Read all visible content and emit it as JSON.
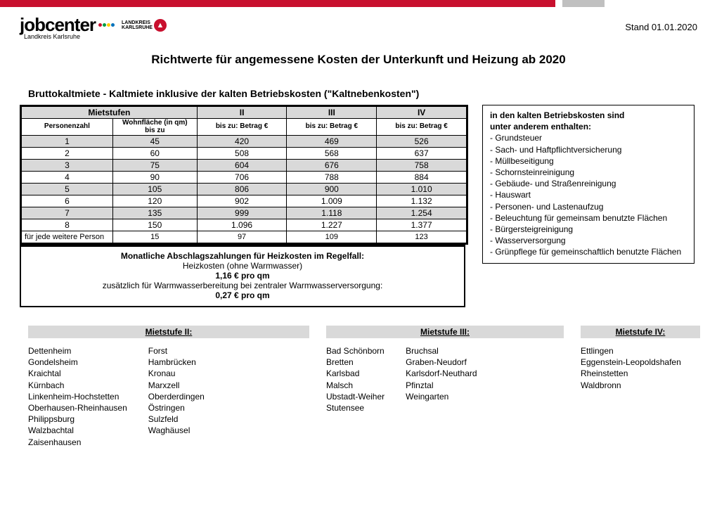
{
  "colors": {
    "brand_red": "#c8102e",
    "header_gray": "#d9d9d9",
    "top_gray": "#c0c0c0"
  },
  "logo": {
    "text": "jobcenter",
    "subtext": "Landkreis Karlsruhe",
    "badge_line1": "LANDKREIS",
    "badge_line2": "KARLSRUHE",
    "dots": [
      "#c8102e",
      "#009a44",
      "#ffcd00",
      "#0072bc"
    ]
  },
  "date_stamp": "Stand 01.01.2020",
  "title": "Richtwerte für angemessene Kosten der Unterkunft und Heizung ab 2020",
  "subtitle": "Bruttokaltmiete - Kaltmiete inklusive der kalten Betriebskosten (\"Kaltnebenkosten\")",
  "table": {
    "head_mietstufen": "Mietstufen",
    "head_ii": "II",
    "head_iii": "III",
    "head_iv": "IV",
    "sub_personenzahl": "Personenzahl",
    "sub_wohn_line": "Wohnfläche (in qm)\nbis zu",
    "sub_betrag": "bis zu: Betrag  €",
    "rows": [
      {
        "p": "1",
        "q": "45",
        "ii": "420",
        "iii": "469",
        "iv": "526",
        "shaded": true
      },
      {
        "p": "2",
        "q": "60",
        "ii": "508",
        "iii": "568",
        "iv": "637",
        "shaded": false
      },
      {
        "p": "3",
        "q": "75",
        "ii": "604",
        "iii": "676",
        "iv": "758",
        "shaded": true
      },
      {
        "p": "4",
        "q": "90",
        "ii": "706",
        "iii": "788",
        "iv": "884",
        "shaded": false
      },
      {
        "p": "5",
        "q": "105",
        "ii": "806",
        "iii": "900",
        "iv": "1.010",
        "shaded": true
      },
      {
        "p": "6",
        "q": "120",
        "ii": "902",
        "iii": "1.009",
        "iv": "1.132",
        "shaded": false
      },
      {
        "p": "7",
        "q": "135",
        "ii": "999",
        "iii": "1.118",
        "iv": "1.254",
        "shaded": true
      },
      {
        "p": "8",
        "q": "150",
        "ii": "1.096",
        "iii": "1.227",
        "iv": "1.377",
        "shaded": false
      }
    ],
    "footer_label": "für jede weitere Person",
    "footer_q": "15",
    "footer_ii": "97",
    "footer_iii": "109",
    "footer_iv": "123"
  },
  "heiz": {
    "line1": "Monatliche Abschlagszahlungen für Heizkosten im Regelfall:",
    "line2": "Heizkosten (ohne Warmwasser)",
    "line3": "1,16 € pro qm",
    "line4": "zusätzlich für Warmwasserbereitung bei zentraler Warmwasserversorgung:",
    "line5": "0,27 € pro qm"
  },
  "sidebox": {
    "hdr1": "in den kalten Betriebskosten sind",
    "hdr2": "unter anderem enthalten:",
    "items": [
      "- Grundsteuer",
      "- Sach- und Haftpflichtversicherung",
      "- Müllbeseitigung",
      "- Schornsteinreinigung",
      "- Gebäude- und Straßenreinigung",
      "- Hauswart",
      "- Personen- und Lastenaufzug",
      "- Beleuchtung für gemeinsam benutzte Flächen",
      "- Bürgersteigreinigung",
      "- Wasserversorgung",
      "- Grünpflege für gemeinschaftlich benutzte Flächen"
    ]
  },
  "ms2": {
    "title": "Mietstufe II:",
    "col1": [
      "Dettenheim",
      "Gondelsheim",
      "Kraichtal",
      "Kürnbach",
      "Linkenheim-Hochstetten",
      "Oberhausen-Rheinhausen",
      "Philippsburg",
      "Walzbachtal",
      "Zaisenhausen"
    ],
    "col2": [
      "Forst",
      "Hambrücken",
      "Kronau",
      "Marxzell",
      "Oberderdingen",
      "Östringen",
      "Sulzfeld",
      "Waghäusel"
    ]
  },
  "ms3": {
    "title": "Mietstufe III:",
    "col1": [
      "Bad Schönborn",
      "Bretten",
      "Karlsbad",
      "Malsch",
      "Ubstadt-Weiher",
      "Stutensee"
    ],
    "col2": [
      "Bruchsal",
      "Graben-Neudorf",
      "Karlsdorf-Neuthard",
      "Pfinztal",
      "Weingarten"
    ]
  },
  "ms4": {
    "title": "Mietstufe IV:",
    "col1": [
      "Ettlingen",
      "Eggenstein-Leopoldshafen",
      "Rheinstetten",
      "Waldbronn"
    ]
  }
}
